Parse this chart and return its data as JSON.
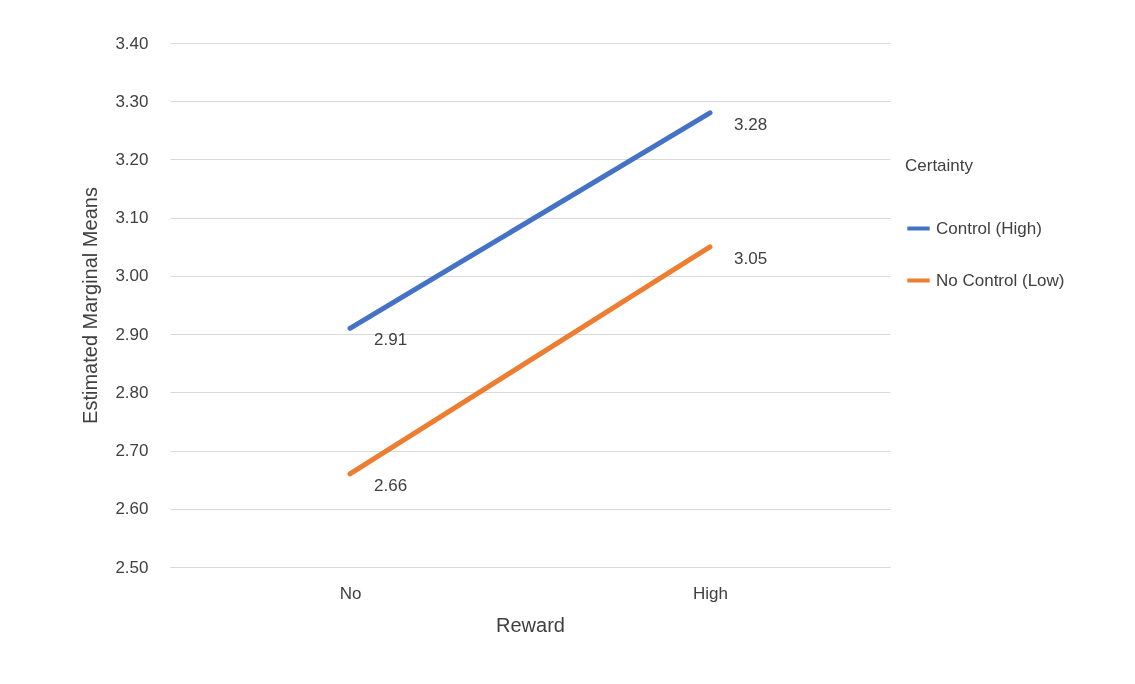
{
  "chart_data": {
    "type": "line",
    "xlabel": "Reward",
    "ylabel": "Estimated Marginal Means",
    "legend_title": "Certainty",
    "categories": [
      "No",
      "High"
    ],
    "series": [
      {
        "name": "Control (High)",
        "color": "#4472c4",
        "values": [
          2.91,
          3.28
        ]
      },
      {
        "name": "No Control (Low)",
        "color": "#ed7d31",
        "values": [
          2.66,
          3.05
        ]
      }
    ],
    "ylim": [
      2.5,
      3.4
    ],
    "yticks": [
      {
        "value": 2.5,
        "label": "2.50"
      },
      {
        "value": 2.6,
        "label": "2.60"
      },
      {
        "value": 2.7,
        "label": "2.70"
      },
      {
        "value": 2.8,
        "label": "2.80"
      },
      {
        "value": 2.9,
        "label": "2.90"
      },
      {
        "value": 3.0,
        "label": "3.00"
      },
      {
        "value": 3.1,
        "label": "3.10"
      },
      {
        "value": 3.2,
        "label": "3.20"
      },
      {
        "value": 3.3,
        "label": "3.30"
      },
      {
        "value": 3.4,
        "label": "3.40"
      }
    ],
    "grid": "y",
    "legend": "right",
    "data_labels": true,
    "marker": "none",
    "line_style": "solid"
  }
}
